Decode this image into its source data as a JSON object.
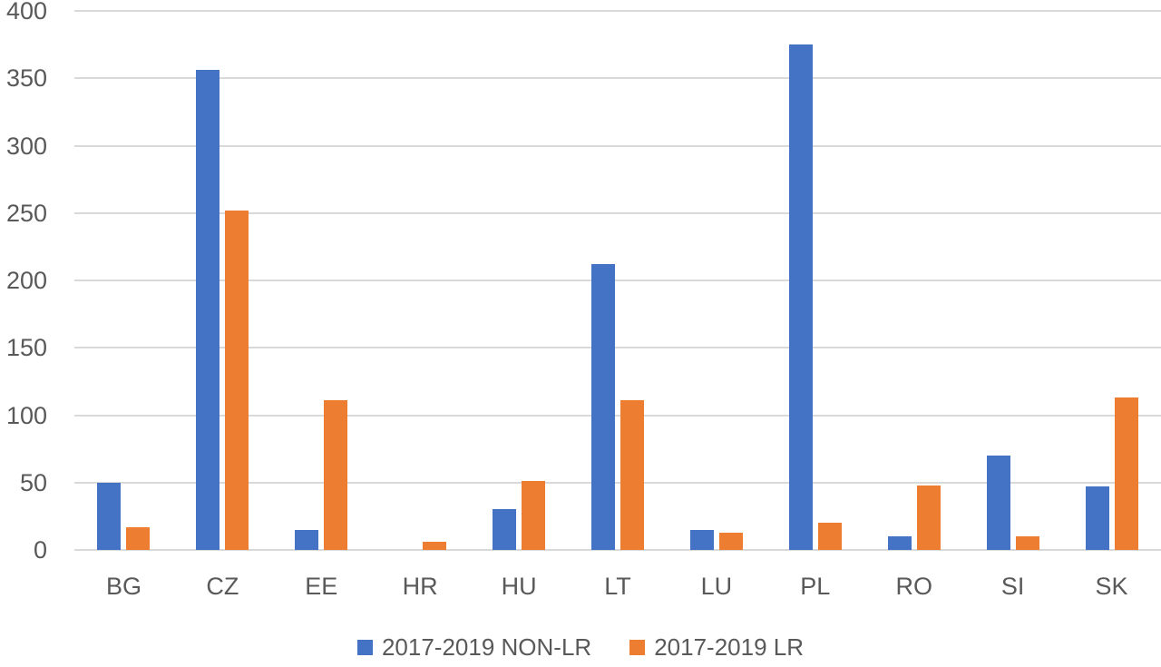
{
  "chart_data": {
    "type": "bar",
    "title": "",
    "xlabel": "",
    "ylabel": "",
    "categories": [
      "BG",
      "CZ",
      "EE",
      "HR",
      "HU",
      "LT",
      "LU",
      "PL",
      "RO",
      "SI",
      "SK"
    ],
    "series": [
      {
        "name": "2017-2019 NON-LR",
        "color": "#4472C4",
        "values": [
          50,
          356,
          15,
          0,
          30,
          212,
          15,
          375,
          10,
          70,
          47
        ]
      },
      {
        "name": "2017-2019 LR",
        "color": "#ED7D31",
        "values": [
          17,
          252,
          111,
          6,
          51,
          111,
          13,
          20,
          48,
          10,
          113
        ]
      }
    ],
    "ylim": [
      0,
      400
    ],
    "yticks": [
      0,
      50,
      100,
      150,
      200,
      250,
      300,
      350,
      400
    ],
    "grid": true,
    "legend_position": "bottom"
  },
  "colors": {
    "series_non_lr": "#4472C4",
    "series_lr": "#ED7D31",
    "gridline": "#D9D9D9",
    "axis_text": "#595959",
    "background": "#FFFFFF"
  }
}
